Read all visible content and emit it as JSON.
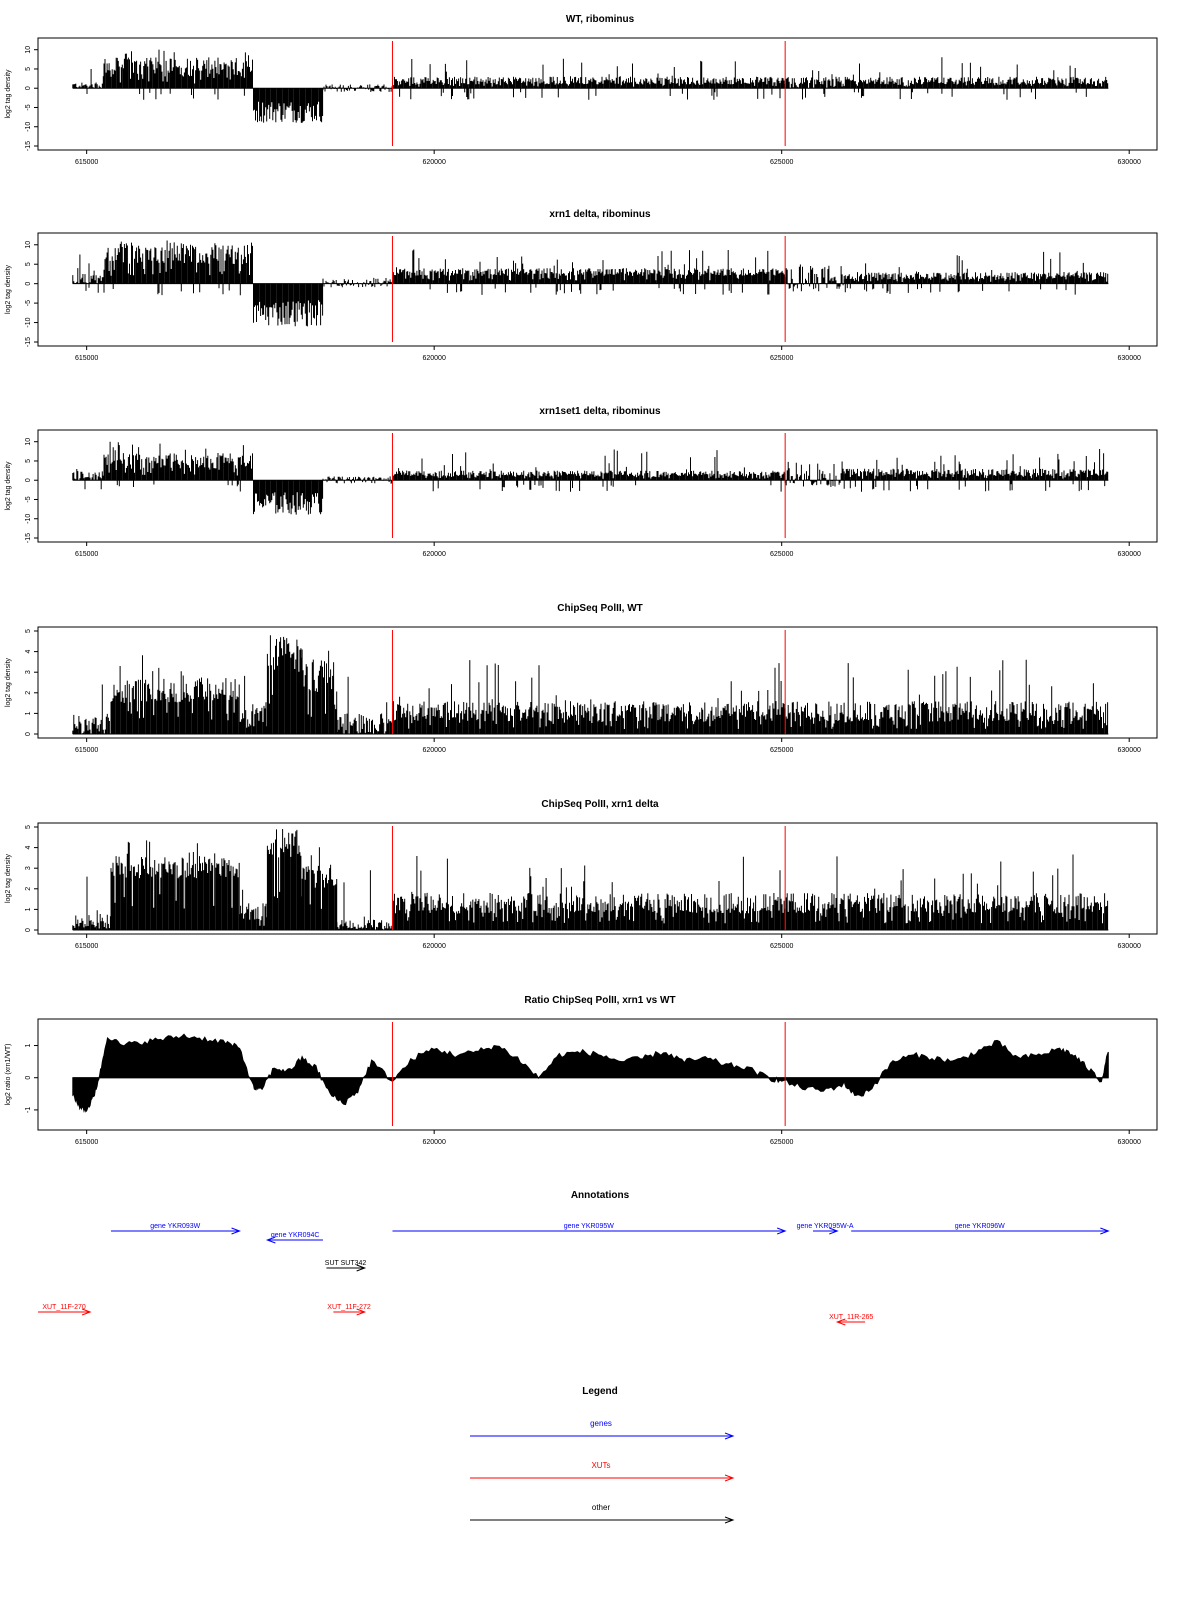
{
  "chart_data": [
    {
      "type": "bar",
      "title": "WT, ribominus",
      "ylabel": "log2 tag density",
      "xlim": [
        614300,
        630400
      ],
      "ylim": [
        -15,
        12
      ],
      "yticks": [
        -15,
        -10,
        -5,
        0,
        5,
        10
      ],
      "xticks": [
        615000,
        620000,
        625000,
        630000
      ],
      "markers": [
        619400,
        625050
      ],
      "series": [
        {
          "segments": [
            {
              "x": [
                614800,
                615250
              ],
              "y": [
                0,
                1.5
              ]
            },
            {
              "x": [
                615250,
                617400
              ],
              "y": [
                3,
                8
              ]
            },
            {
              "x": [
                617400,
                618400
              ],
              "y": [
                -9,
                -3
              ]
            },
            {
              "x": [
                618400,
                619400
              ],
              "y": [
                -1,
                1
              ]
            },
            {
              "x": [
                619400,
                625050
              ],
              "y": [
                1,
                3
              ]
            },
            {
              "x": [
                625050,
                625900
              ],
              "y": [
                0,
                3
              ]
            },
            {
              "x": [
                625900,
                629700
              ],
              "y": [
                1,
                3
              ]
            }
          ]
        }
      ]
    },
    {
      "type": "bar",
      "title": "xrn1 delta, ribominus",
      "ylabel": "log2 tag density",
      "xlim": [
        614300,
        630400
      ],
      "ylim": [
        -15,
        12
      ],
      "yticks": [
        -15,
        -10,
        -5,
        0,
        5,
        10
      ],
      "xticks": [
        615000,
        620000,
        625000,
        630000
      ],
      "markers": [
        619400,
        625050
      ],
      "series": [
        {
          "segments": [
            {
              "x": [
                614800,
                615250
              ],
              "y": [
                0,
                2.5
              ]
            },
            {
              "x": [
                615250,
                617400
              ],
              "y": [
                5,
                10
              ]
            },
            {
              "x": [
                617400,
                618400
              ],
              "y": [
                -11,
                -4
              ]
            },
            {
              "x": [
                618400,
                619400
              ],
              "y": [
                -1,
                1.5
              ]
            },
            {
              "x": [
                619400,
                625050
              ],
              "y": [
                2,
                4
              ]
            },
            {
              "x": [
                625050,
                625900
              ],
              "y": [
                -2,
                5
              ]
            },
            {
              "x": [
                625900,
                629700
              ],
              "y": [
                1,
                3
              ]
            }
          ]
        }
      ]
    },
    {
      "type": "bar",
      "title": "xrn1set1 delta, ribominus",
      "ylabel": "log2 tag density",
      "xlim": [
        614300,
        630400
      ],
      "ylim": [
        -15,
        12
      ],
      "yticks": [
        -15,
        -10,
        -5,
        0,
        5,
        10
      ],
      "xticks": [
        615000,
        620000,
        625000,
        630000
      ],
      "markers": [
        619400,
        625050
      ],
      "series": [
        {
          "segments": [
            {
              "x": [
                614800,
                615250
              ],
              "y": [
                0,
                2.5
              ]
            },
            {
              "x": [
                615250,
                617400
              ],
              "y": [
                3,
                7
              ]
            },
            {
              "x": [
                617400,
                618400
              ],
              "y": [
                -9,
                -3
              ]
            },
            {
              "x": [
                618400,
                619400
              ],
              "y": [
                -1,
                1
              ]
            },
            {
              "x": [
                619400,
                625050
              ],
              "y": [
                1,
                2.5
              ]
            },
            {
              "x": [
                625050,
                625900
              ],
              "y": [
                -2,
                5
              ]
            },
            {
              "x": [
                625900,
                629700
              ],
              "y": [
                1,
                3
              ]
            }
          ]
        }
      ]
    },
    {
      "type": "bar",
      "title": "ChipSeq PolII, WT",
      "ylabel": "log2 tag density",
      "xlim": [
        614300,
        630400
      ],
      "ylim": [
        0,
        5
      ],
      "yticks": [
        0,
        1,
        2,
        3,
        4,
        5
      ],
      "xticks": [
        615000,
        620000,
        625000,
        630000
      ],
      "markers": [
        619400,
        625050
      ],
      "series": [
        {
          "segments": [
            {
              "x": [
                614800,
                615350
              ],
              "y": [
                0,
                1
              ]
            },
            {
              "x": [
                615350,
                617200
              ],
              "y": [
                1.5,
                2.8
              ]
            },
            {
              "x": [
                617200,
                617600
              ],
              "y": [
                0.5,
                1.5
              ]
            },
            {
              "x": [
                617600,
                618100
              ],
              "y": [
                3,
                4.8
              ]
            },
            {
              "x": [
                618100,
                618600
              ],
              "y": [
                2,
                3.5
              ]
            },
            {
              "x": [
                618600,
                619400
              ],
              "y": [
                0,
                1
              ]
            },
            {
              "x": [
                619400,
                629700
              ],
              "y": [
                0.6,
                1.6
              ]
            }
          ]
        }
      ]
    },
    {
      "type": "bar",
      "title": "ChipSeq PolII, xrn1 delta",
      "ylabel": "log2 tag density",
      "xlim": [
        614300,
        630400
      ],
      "ylim": [
        0,
        5
      ],
      "yticks": [
        0,
        1,
        2,
        3,
        4,
        5
      ],
      "xticks": [
        615000,
        620000,
        625000,
        630000
      ],
      "markers": [
        619400,
        625050
      ],
      "series": [
        {
          "segments": [
            {
              "x": [
                614800,
                615350
              ],
              "y": [
                0,
                0.8
              ]
            },
            {
              "x": [
                615350,
                617200
              ],
              "y": [
                2.5,
                3.6
              ]
            },
            {
              "x": [
                617200,
                617600
              ],
              "y": [
                0.5,
                1.3
              ]
            },
            {
              "x": [
                617600,
                618100
              ],
              "y": [
                3.5,
                4.8
              ]
            },
            {
              "x": [
                618100,
                618600
              ],
              "y": [
                2,
                3.2
              ]
            },
            {
              "x": [
                618600,
                619400
              ],
              "y": [
                0,
                0.5
              ]
            },
            {
              "x": [
                619400,
                629700
              ],
              "y": [
                0.8,
                1.8
              ]
            }
          ]
        }
      ]
    },
    {
      "type": "area",
      "title": "Ratio ChipSeq PolII, xrn1 vs WT",
      "ylabel": "log2 ratio (xrn1/WT)",
      "xlim": [
        614300,
        630400
      ],
      "ylim": [
        -1.5,
        1.7
      ],
      "yticks": [
        -1.0,
        0.0,
        1.0
      ],
      "xticks": [
        615000,
        620000,
        625000,
        630000
      ],
      "markers": [
        619400,
        625050
      ],
      "series": [
        {
          "x": [
            614800,
            614900,
            615000,
            615100,
            615200,
            615300,
            615500,
            615800,
            616100,
            616400,
            616700,
            617000,
            617200,
            617400,
            617500,
            617700,
            617900,
            618100,
            618300,
            618500,
            618700,
            618900,
            619100,
            619400,
            619700,
            620000,
            620300,
            620600,
            620900,
            621200,
            621500,
            621800,
            622100,
            622400,
            622700,
            623000,
            623300,
            623600,
            623900,
            624200,
            624500,
            624800,
            625000,
            625300,
            625600,
            625900,
            626100,
            626300,
            626600,
            626900,
            627200,
            627500,
            627800,
            628100,
            628400,
            628700,
            629000,
            629200,
            629400,
            629600,
            629700
          ],
          "y": [
            -0.5,
            -0.9,
            -1.0,
            -0.6,
            0.2,
            1.3,
            1.0,
            1.1,
            1.2,
            1.3,
            1.2,
            1.1,
            0.9,
            -0.3,
            -0.4,
            0.3,
            0.2,
            0.6,
            0.3,
            -0.5,
            -0.8,
            -0.4,
            0.5,
            -0.1,
            0.6,
            0.9,
            0.7,
            0.8,
            1.0,
            0.6,
            0.0,
            0.7,
            0.8,
            0.7,
            0.5,
            0.6,
            0.8,
            0.5,
            0.6,
            0.4,
            0.3,
            0.0,
            -0.1,
            -0.3,
            -0.4,
            -0.2,
            -0.6,
            -0.3,
            0.5,
            0.7,
            0.6,
            0.5,
            0.8,
            1.1,
            0.6,
            0.7,
            0.9,
            0.7,
            0.3,
            -0.1,
            0.8
          ]
        }
      ]
    }
  ],
  "annotations": {
    "title": "Annotations",
    "features": [
      {
        "label": "gene YKR093W",
        "start": 615350,
        "end": 617200,
        "strand": "+",
        "type": "gene",
        "row": 0
      },
      {
        "label": "gene YKR094C",
        "start": 617600,
        "end": 618400,
        "strand": "-",
        "type": "gene",
        "row": 1
      },
      {
        "label": "gene YKR095W",
        "start": 619400,
        "end": 625050,
        "strand": "+",
        "type": "gene",
        "row": 0
      },
      {
        "label": "gene YKR095W-A",
        "start": 625450,
        "end": 625800,
        "strand": "+",
        "type": "gene",
        "row": 0
      },
      {
        "label": "gene YKR096W",
        "start": 626000,
        "end": 629700,
        "strand": "+",
        "type": "gene",
        "row": 0
      },
      {
        "label": "SUT SUT342",
        "start": 618450,
        "end": 619000,
        "strand": "+",
        "type": "other",
        "row": 2
      },
      {
        "label": "XUT_11F-270",
        "start": 614300,
        "end": 615050,
        "strand": "+",
        "type": "XUT",
        "row": 3
      },
      {
        "label": "XUT_11F-272",
        "start": 618550,
        "end": 619000,
        "strand": "+",
        "type": "XUT",
        "row": 3
      },
      {
        "label": "XUT_11R-265",
        "start": 625800,
        "end": 626200,
        "strand": "-",
        "type": "XUT",
        "row": 4
      }
    ]
  },
  "legend": {
    "title": "Legend",
    "entries": [
      {
        "label": "genes",
        "color": "#0000ff"
      },
      {
        "label": "XUTs",
        "color": "#ff0000"
      },
      {
        "label": "other",
        "color": "#000000"
      }
    ]
  },
  "colors": {
    "gene": "#0000ff",
    "XUT": "#ff0000",
    "other": "#000000",
    "marker": "#ff0000",
    "data": "#000000"
  }
}
